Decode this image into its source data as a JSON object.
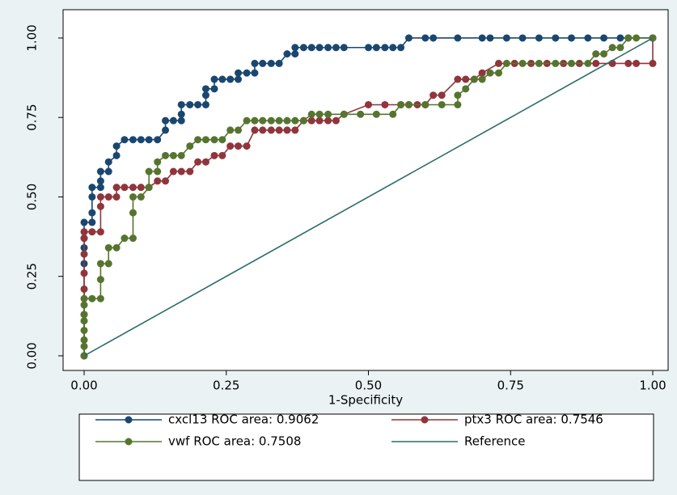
{
  "chart_data": {
    "type": "line",
    "x_label": "1-Specificity",
    "xlim": [
      -0.037,
      1.027
    ],
    "ylim": [
      -0.046,
      1.089
    ],
    "xticks": [
      {
        "value": 0,
        "label": "0.00"
      },
      {
        "value": 0.25,
        "label": "0.25"
      },
      {
        "value": 0.5,
        "label": "0.50"
      },
      {
        "value": 0.75,
        "label": "0.75"
      },
      {
        "value": 1,
        "label": "1.00"
      }
    ],
    "yticks": [
      {
        "value": 0,
        "label": "0.00"
      },
      {
        "value": 0.25,
        "label": "0.25"
      },
      {
        "value": 0.5,
        "label": "0.50"
      },
      {
        "value": 0.75,
        "label": "0.75"
      },
      {
        "value": 1,
        "label": "1.00"
      }
    ],
    "grid": false,
    "series": [
      {
        "name": "cxcl13 ROC area: 0.9062",
        "color": "#1a476f",
        "marker": true,
        "x": [
          0,
          0,
          0,
          0,
          0,
          0.014,
          0.014,
          0.014,
          0.014,
          0.029,
          0.029,
          0.029,
          0.043,
          0.043,
          0.057,
          0.057,
          0.071,
          0.086,
          0.1,
          0.114,
          0.129,
          0.143,
          0.143,
          0.157,
          0.171,
          0.171,
          0.171,
          0.186,
          0.2,
          0.214,
          0.214,
          0.214,
          0.229,
          0.229,
          0.243,
          0.257,
          0.271,
          0.271,
          0.286,
          0.3,
          0.3,
          0.314,
          0.329,
          0.343,
          0.357,
          0.371,
          0.371,
          0.386,
          0.4,
          0.414,
          0.429,
          0.443,
          0.457,
          0.5,
          0.514,
          0.529,
          0.543,
          0.557,
          0.571,
          0.6,
          0.614,
          0.657,
          0.7,
          0.714,
          0.743,
          0.771,
          0.8,
          0.829,
          0.857,
          0.886,
          0.914,
          0.943,
          0.957,
          1
        ],
        "values": [
          0,
          0.29,
          0.34,
          0.37,
          0.42,
          0.42,
          0.45,
          0.5,
          0.53,
          0.53,
          0.55,
          0.58,
          0.58,
          0.61,
          0.63,
          0.66,
          0.68,
          0.68,
          0.68,
          0.68,
          0.68,
          0.71,
          0.74,
          0.74,
          0.74,
          0.76,
          0.79,
          0.79,
          0.79,
          0.79,
          0.82,
          0.84,
          0.84,
          0.87,
          0.87,
          0.87,
          0.87,
          0.89,
          0.89,
          0.89,
          0.92,
          0.92,
          0.92,
          0.92,
          0.95,
          0.95,
          0.97,
          0.97,
          0.97,
          0.97,
          0.97,
          0.97,
          0.97,
          0.97,
          0.97,
          0.97,
          0.97,
          0.97,
          1,
          1,
          1,
          1,
          1,
          1,
          1,
          1,
          1,
          1,
          1,
          1,
          1,
          1,
          1,
          1
        ]
      },
      {
        "name": "ptx3 ROC area: 0.7546",
        "color": "#90353b",
        "marker": true,
        "x": [
          0,
          0,
          0,
          0,
          0,
          0,
          0,
          0.014,
          0.029,
          0.029,
          0.029,
          0.043,
          0.057,
          0.057,
          0.071,
          0.086,
          0.1,
          0.114,
          0.129,
          0.143,
          0.157,
          0.171,
          0.186,
          0.2,
          0.214,
          0.229,
          0.243,
          0.257,
          0.271,
          0.286,
          0.3,
          0.314,
          0.329,
          0.343,
          0.357,
          0.371,
          0.386,
          0.4,
          0.414,
          0.429,
          0.443,
          0.457,
          0.5,
          0.529,
          0.557,
          0.571,
          0.586,
          0.6,
          0.614,
          0.629,
          0.657,
          0.671,
          0.686,
          0.7,
          0.729,
          0.757,
          0.786,
          0.814,
          0.843,
          0.871,
          0.9,
          0.929,
          0.957,
          0.971,
          1,
          1
        ],
        "values": [
          0,
          0.13,
          0.21,
          0.26,
          0.32,
          0.37,
          0.39,
          0.39,
          0.39,
          0.47,
          0.5,
          0.5,
          0.5,
          0.53,
          0.53,
          0.53,
          0.53,
          0.53,
          0.55,
          0.55,
          0.58,
          0.58,
          0.58,
          0.61,
          0.61,
          0.63,
          0.63,
          0.66,
          0.66,
          0.66,
          0.71,
          0.71,
          0.71,
          0.71,
          0.71,
          0.71,
          0.74,
          0.74,
          0.74,
          0.74,
          0.74,
          0.76,
          0.79,
          0.79,
          0.79,
          0.79,
          0.79,
          0.79,
          0.82,
          0.82,
          0.87,
          0.87,
          0.87,
          0.89,
          0.92,
          0.92,
          0.92,
          0.92,
          0.92,
          0.92,
          0.92,
          0.92,
          0.92,
          0.92,
          0.92,
          1
        ]
      },
      {
        "name": "vwf ROC area: 0.7508",
        "color": "#55752f",
        "marker": true,
        "x": [
          0,
          0,
          0,
          0,
          0,
          0,
          0,
          0,
          0.014,
          0.029,
          0.029,
          0.029,
          0.043,
          0.043,
          0.057,
          0.071,
          0.086,
          0.086,
          0.086,
          0.1,
          0.114,
          0.114,
          0.129,
          0.129,
          0.143,
          0.157,
          0.171,
          0.186,
          0.2,
          0.214,
          0.229,
          0.243,
          0.257,
          0.271,
          0.286,
          0.3,
          0.314,
          0.329,
          0.343,
          0.357,
          0.371,
          0.386,
          0.4,
          0.414,
          0.429,
          0.457,
          0.486,
          0.514,
          0.543,
          0.557,
          0.571,
          0.6,
          0.629,
          0.657,
          0.657,
          0.671,
          0.686,
          0.7,
          0.714,
          0.729,
          0.743,
          0.771,
          0.8,
          0.829,
          0.857,
          0.886,
          0.9,
          0.914,
          0.929,
          0.943,
          0.957,
          0.971,
          1
        ],
        "values": [
          0,
          0.03,
          0.05,
          0.08,
          0.11,
          0.13,
          0.16,
          0.18,
          0.18,
          0.18,
          0.24,
          0.29,
          0.29,
          0.34,
          0.34,
          0.37,
          0.37,
          0.45,
          0.5,
          0.5,
          0.53,
          0.58,
          0.58,
          0.61,
          0.63,
          0.63,
          0.63,
          0.66,
          0.68,
          0.68,
          0.68,
          0.68,
          0.71,
          0.71,
          0.74,
          0.74,
          0.74,
          0.74,
          0.74,
          0.74,
          0.74,
          0.74,
          0.76,
          0.76,
          0.76,
          0.76,
          0.76,
          0.76,
          0.76,
          0.79,
          0.79,
          0.79,
          0.79,
          0.79,
          0.82,
          0.84,
          0.87,
          0.87,
          0.89,
          0.89,
          0.92,
          0.92,
          0.92,
          0.92,
          0.92,
          0.92,
          0.95,
          0.95,
          0.97,
          0.97,
          1,
          1,
          1
        ]
      },
      {
        "name": "Reference",
        "color": "#2d6d66",
        "marker": false,
        "x": [
          0,
          1
        ],
        "values": [
          0,
          1
        ]
      }
    ]
  }
}
